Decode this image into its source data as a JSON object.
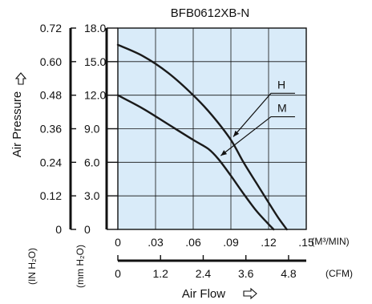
{
  "chart_data": {
    "type": "line",
    "title": "BFB0612XB-N",
    "xlabel": "Air Flow",
    "ylabel": "Air Pressure",
    "x_unit_primary": "(M³/MIN)",
    "x_unit_secondary": "(CFM)",
    "y_unit_inch": "(IN H₂O)",
    "y_unit_mm": "(mm H₂O)",
    "xlim": [
      0,
      0.15
    ],
    "ylim": [
      0,
      18.0
    ],
    "x_ticks": [
      {
        "value": 0,
        "label": "0"
      },
      {
        "value": 0.03,
        "label": ".03"
      },
      {
        "value": 0.06,
        "label": ".06"
      },
      {
        "value": 0.09,
        "label": ".09"
      },
      {
        "value": 0.12,
        "label": ".12"
      },
      {
        "value": 0.15,
        "label": ".15"
      }
    ],
    "x_ticks_cfm": [
      {
        "value": 0,
        "label": "0"
      },
      {
        "value": 1.2,
        "label": "1.2"
      },
      {
        "value": 2.4,
        "label": "2.4"
      },
      {
        "value": 3.6,
        "label": "3.6"
      },
      {
        "value": 4.8,
        "label": "4.8"
      }
    ],
    "y_ticks_mm": [
      {
        "value": 0,
        "label": "0"
      },
      {
        "value": 3.0,
        "label": "3.0"
      },
      {
        "value": 6.0,
        "label": "6.0"
      },
      {
        "value": 9.0,
        "label": "9.0"
      },
      {
        "value": 12.0,
        "label": "12.0"
      },
      {
        "value": 15.0,
        "label": "15.0"
      },
      {
        "value": 18.0,
        "label": "18.0"
      }
    ],
    "y_ticks_inch": [
      {
        "value": 0,
        "label": "0"
      },
      {
        "value": 0.12,
        "label": "0.12"
      },
      {
        "value": 0.24,
        "label": "0.24"
      },
      {
        "value": 0.36,
        "label": "0.36"
      },
      {
        "value": 0.48,
        "label": "0.48"
      },
      {
        "value": 0.6,
        "label": "0.60"
      },
      {
        "value": 0.72,
        "label": "0.72"
      }
    ],
    "series": [
      {
        "name": "H",
        "x": [
          0,
          0.02,
          0.04,
          0.06,
          0.075,
          0.09,
          0.1,
          0.11,
          0.12,
          0.128,
          0.1345
        ],
        "y": [
          16.5,
          15.5,
          14.0,
          12.0,
          10.2,
          8.0,
          6.0,
          4.2,
          2.4,
          1.0,
          0
        ]
      },
      {
        "name": "M",
        "x": [
          0,
          0.02,
          0.04,
          0.06,
          0.072,
          0.08,
          0.09,
          0.1,
          0.11,
          0.118,
          0.124
        ],
        "y": [
          12.0,
          10.8,
          9.4,
          8.0,
          7.2,
          6.3,
          4.8,
          3.2,
          1.7,
          0.7,
          0
        ]
      }
    ],
    "grid": true,
    "plot_background": "#d9ebf9",
    "line_color": "#1a1a1a",
    "legend": "inline-callouts"
  }
}
